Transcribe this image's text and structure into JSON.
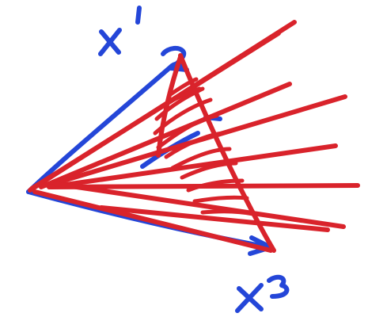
{
  "colors": {
    "blue_ink": "#2446d8",
    "red_ink": "#d9232b",
    "background": "#ffffff"
  }
}
